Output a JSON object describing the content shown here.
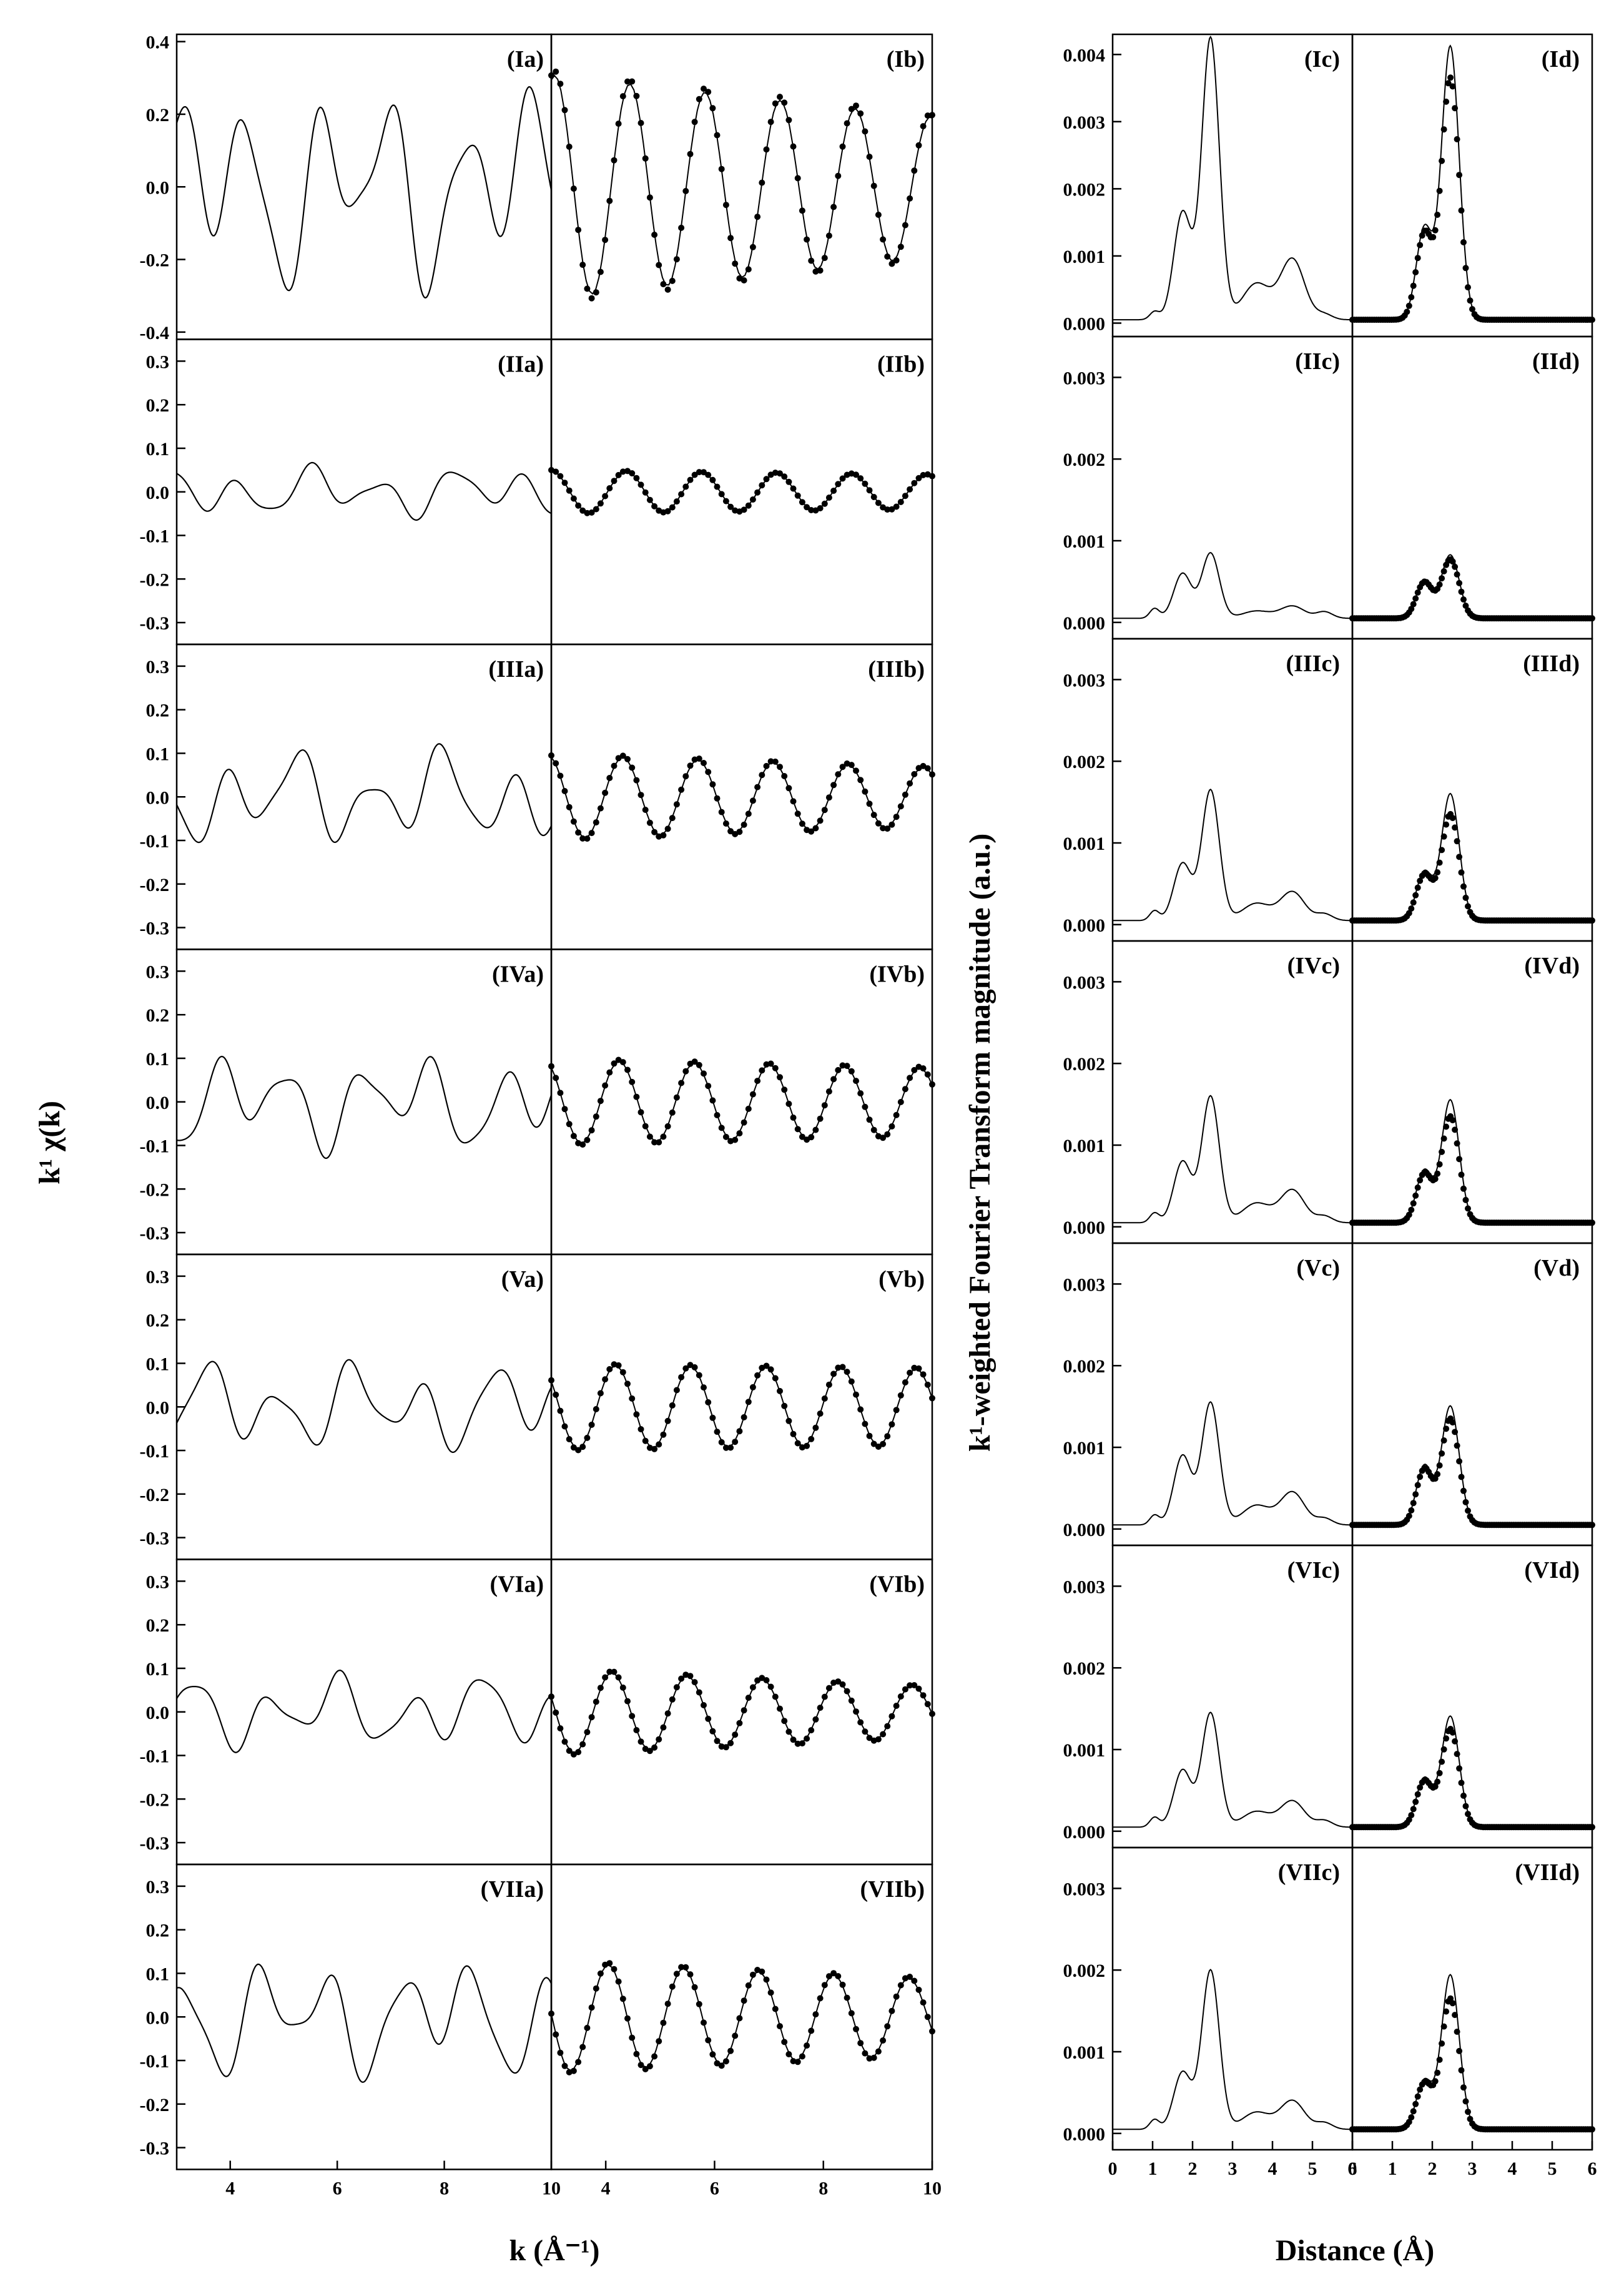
{
  "chart_data": [
    {
      "type": "line",
      "title": "",
      "xlabel": "k (Å⁻¹)",
      "ylabel": "k¹ χ(k)",
      "left_column": {
        "xlim": [
          3,
          10
        ],
        "xticks": [
          "4",
          "6",
          "8",
          "10"
        ]
      },
      "right_column": {
        "xlim": [
          3,
          10
        ],
        "xticks": [
          "4",
          "6",
          "8",
          "10"
        ],
        "note": "filtered signal: solid line = experiment, dotted = fit"
      },
      "rows": [
        {
          "label_a": "(Ia)",
          "label_b": "(Ib)",
          "ylim": [
            -0.42,
            0.42
          ],
          "yticks": [
            "0.4",
            "0.2",
            "0.0",
            "-0.2",
            "-0.4"
          ],
          "ytick_values": [
            0.4,
            0.2,
            0.0,
            -0.2,
            -0.4
          ],
          "raw_amp": 0.33,
          "fit_amp_start": 0.32,
          "fit_amp_end": 0.2
        },
        {
          "label_a": "(IIa)",
          "label_b": "(IIb)",
          "ylim": [
            -0.35,
            0.35
          ],
          "yticks": [
            "0.3",
            "0.2",
            "0.1",
            "0.0",
            "-0.1",
            "-0.2",
            "-0.3"
          ],
          "ytick_values": [
            0.3,
            0.2,
            0.1,
            0.0,
            -0.1,
            -0.2,
            -0.3
          ],
          "raw_amp": 0.07,
          "fit_amp_start": 0.05,
          "fit_amp_end": 0.04
        },
        {
          "label_a": "(IIIa)",
          "label_b": "(IIIb)",
          "ylim": [
            -0.35,
            0.35
          ],
          "yticks": [
            "0.3",
            "0.2",
            "0.1",
            "0.0",
            "-0.1",
            "-0.2",
            "-0.3"
          ],
          "ytick_values": [
            0.3,
            0.2,
            0.1,
            0.0,
            -0.1,
            -0.2,
            -0.3
          ],
          "raw_amp": 0.13,
          "fit_amp_start": 0.1,
          "fit_amp_end": 0.07
        },
        {
          "label_a": "(IVa)",
          "label_b": "(IVb)",
          "ylim": [
            -0.35,
            0.35
          ],
          "yticks": [
            "0.3",
            "0.2",
            "0.1",
            "0.0",
            "-0.1",
            "-0.2",
            "-0.3"
          ],
          "ytick_values": [
            0.3,
            0.2,
            0.1,
            0.0,
            -0.1,
            -0.2,
            -0.3
          ],
          "raw_amp": 0.13,
          "fit_amp_start": 0.1,
          "fit_amp_end": 0.08
        },
        {
          "label_a": "(Va)",
          "label_b": "(Vb)",
          "ylim": [
            -0.35,
            0.35
          ],
          "yticks": [
            "0.3",
            "0.2",
            "0.1",
            "0.0",
            "-0.1",
            "-0.2",
            "-0.3"
          ],
          "ytick_values": [
            0.3,
            0.2,
            0.1,
            0.0,
            -0.1,
            -0.2,
            -0.3
          ],
          "raw_amp": 0.12,
          "fit_amp_start": 0.1,
          "fit_amp_end": 0.09
        },
        {
          "label_a": "(VIa)",
          "label_b": "(VIb)",
          "ylim": [
            -0.35,
            0.35
          ],
          "yticks": [
            "0.3",
            "0.2",
            "0.1",
            "0.0",
            "-0.1",
            "-0.2",
            "-0.3"
          ],
          "ytick_values": [
            0.3,
            0.2,
            0.1,
            0.0,
            -0.1,
            -0.2,
            -0.3
          ],
          "raw_amp": 0.1,
          "fit_amp_start": 0.1,
          "fit_amp_end": 0.06
        },
        {
          "label_a": "(VIIa)",
          "label_b": "(VIIb)",
          "ylim": [
            -0.35,
            0.35
          ],
          "yticks": [
            "0.3",
            "0.2",
            "0.1",
            "0.0",
            "-0.1",
            "-0.2",
            "-0.3"
          ],
          "ytick_values": [
            0.3,
            0.2,
            0.1,
            0.0,
            -0.1,
            -0.2,
            -0.3
          ],
          "raw_amp": 0.16,
          "fit_amp_start": 0.13,
          "fit_amp_end": 0.09
        }
      ]
    },
    {
      "type": "line",
      "title": "",
      "xlabel": "Distance (Å)",
      "ylabel": "k¹-weighted Fourier Transform magnitude (a.u.)",
      "xlim": [
        0,
        6
      ],
      "xticks": [
        "0",
        "1",
        "2",
        "3",
        "4",
        "5",
        "6"
      ],
      "rows": [
        {
          "label_c": "(Ic)",
          "label_d": "(Id)",
          "ylim": [
            -0.0002,
            0.0043
          ],
          "yticks": [
            "0.004",
            "0.003",
            "0.002",
            "0.001",
            "0.000"
          ],
          "ytick_values": [
            0.004,
            0.003,
            0.002,
            0.001,
            0.0
          ],
          "shoulder": 0.0016,
          "peak": 0.0042,
          "fit_peak": 0.0036,
          "tail": 0.0009
        },
        {
          "label_c": "(IIc)",
          "label_d": "(IId)",
          "ylim": [
            -0.0002,
            0.0035
          ],
          "yticks": [
            "0.003",
            "0.002",
            "0.001",
            "0.000"
          ],
          "ytick_values": [
            0.003,
            0.002,
            0.001,
            0.0
          ],
          "shoulder": 0.00055,
          "peak": 0.0008,
          "fit_peak": 0.00072,
          "tail": 0.00015
        },
        {
          "label_c": "(IIIc)",
          "label_d": "(IIId)",
          "ylim": [
            -0.0002,
            0.0035
          ],
          "yticks": [
            "0.003",
            "0.002",
            "0.001",
            "0.000"
          ],
          "ytick_values": [
            0.003,
            0.002,
            0.001,
            0.0
          ],
          "shoulder": 0.0007,
          "peak": 0.0016,
          "fit_peak": 0.0013,
          "tail": 0.00035
        },
        {
          "label_c": "(IVc)",
          "label_d": "(IVd)",
          "ylim": [
            -0.0002,
            0.0035
          ],
          "yticks": [
            "0.003",
            "0.002",
            "0.001",
            "0.000"
          ],
          "ytick_values": [
            0.003,
            0.002,
            0.001,
            0.0
          ],
          "shoulder": 0.00075,
          "peak": 0.00155,
          "fit_peak": 0.0013,
          "tail": 0.0004
        },
        {
          "label_c": "(Vc)",
          "label_d": "(Vd)",
          "ylim": [
            -0.0002,
            0.0035
          ],
          "yticks": [
            "0.003",
            "0.002",
            "0.001",
            "0.000"
          ],
          "ytick_values": [
            0.003,
            0.002,
            0.001,
            0.0
          ],
          "shoulder": 0.00085,
          "peak": 0.0015,
          "fit_peak": 0.0013,
          "tail": 0.0004
        },
        {
          "label_c": "(VIc)",
          "label_d": "(VId)",
          "ylim": [
            -0.0002,
            0.0035
          ],
          "yticks": [
            "0.003",
            "0.002",
            "0.001",
            "0.000"
          ],
          "ytick_values": [
            0.003,
            0.002,
            0.001,
            0.0
          ],
          "shoulder": 0.0007,
          "peak": 0.0014,
          "fit_peak": 0.0012,
          "tail": 0.00032
        },
        {
          "label_c": "(VIIc)",
          "label_d": "(VIId)",
          "ylim": [
            -0.0002,
            0.0035
          ],
          "yticks": [
            "0.003",
            "0.002",
            "0.001",
            "0.000"
          ],
          "ytick_values": [
            0.003,
            0.002,
            0.001,
            0.0
          ],
          "shoulder": 0.0007,
          "peak": 0.00195,
          "fit_peak": 0.0016,
          "tail": 0.00035
        }
      ]
    }
  ]
}
